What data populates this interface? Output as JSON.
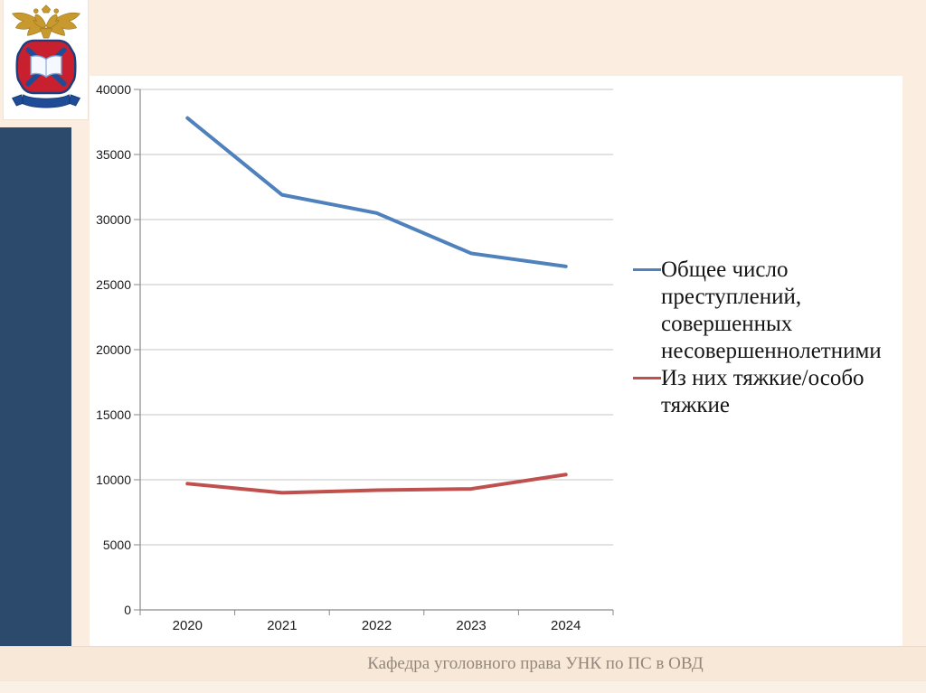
{
  "slide": {
    "footer": "Кафедра уголовного права УНК по ПС в ОВД"
  },
  "logo": {
    "name": "эмблема МВД (университет)"
  },
  "colors": {
    "background": "#FBEEE1",
    "footer_band": "#F8E8D7",
    "bottom_strip": "#FBF0E5",
    "sidebar": "#2C4A6C",
    "card": "#FFFFFF",
    "gridline": "#C6C6C6",
    "axis": "#8A8A8A",
    "tick_text": "#1A1A1A",
    "series_blue": "#4F81BD",
    "series_red": "#C0504D"
  },
  "chart_data": {
    "type": "line",
    "title": "",
    "xlabel": "",
    "ylabel": "",
    "categories": [
      "2020",
      "2021",
      "2022",
      "2023",
      "2024"
    ],
    "series": [
      {
        "name": "Общее число преступлений, совершенных несовершеннолетними",
        "color": "#4F81BD",
        "values": [
          37800,
          31900,
          30500,
          27400,
          26400
        ]
      },
      {
        "name": "Из них тяжкие/особо тяжкие",
        "color": "#C0504D",
        "values": [
          9700,
          9000,
          9200,
          9300,
          10400
        ]
      }
    ],
    "ylim": [
      0,
      40000
    ],
    "ytick_step": 5000,
    "grid": true,
    "legend_position": "right"
  }
}
